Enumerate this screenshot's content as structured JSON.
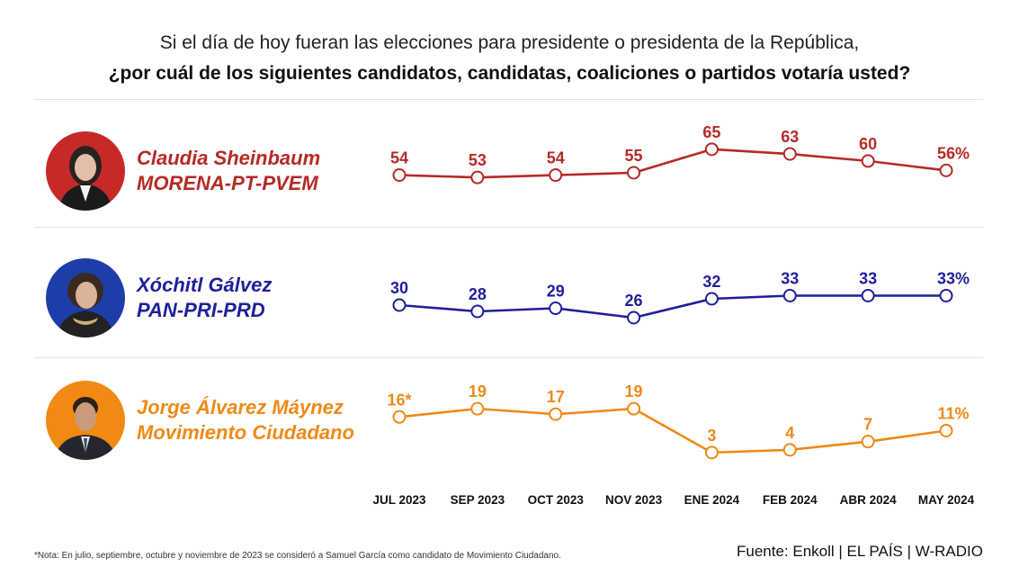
{
  "header": {
    "question_line1": "Si el día de hoy fueran las elecciones para presidente o presidenta de la República,",
    "question_line2": "¿por cuál de los siguientes candidatos, candidatas, coaliciones o partidos votaría usted?"
  },
  "candidates": [
    {
      "name": "Claudia Sheinbaum",
      "party": "MORENA-PT-PVEM",
      "color": "#b52a26",
      "avatar_bg": "#c62a28"
    },
    {
      "name": "Xóchitl Gálvez",
      "party": "PAN-PRI-PRD",
      "color": "#1f1f9c",
      "avatar_bg": "#1d3ea8"
    },
    {
      "name": "Jorge Álvarez Máynez",
      "party": "Movimiento Ciudadano",
      "color": "#ee8a17",
      "avatar_bg": "#f08a12"
    }
  ],
  "chart_data": {
    "type": "line",
    "title": "Si el día de hoy fueran las elecciones para presidente o presidenta de la República, ¿por cuál de los siguientes candidatos, candidatas, coaliciones o partidos votaría usted?",
    "categories": [
      "JUL 2023",
      "SEP 2023",
      "OCT 2023",
      "NOV 2023",
      "ENE 2024",
      "FEB 2024",
      "ABR 2024",
      "MAY 2024"
    ],
    "series": [
      {
        "name": "Claudia Sheinbaum",
        "values": [
          54,
          53,
          54,
          55,
          65,
          63,
          60,
          56
        ],
        "labels": [
          "54",
          "53",
          "54",
          "55",
          "65",
          "63",
          "60",
          "56%"
        ],
        "ylim": [
          50,
          68
        ]
      },
      {
        "name": "Xóchitl Gálvez",
        "values": [
          30,
          28,
          29,
          26,
          32,
          33,
          33,
          33
        ],
        "labels": [
          "30",
          "28",
          "29",
          "26",
          "32",
          "33",
          "33",
          "33%"
        ],
        "ylim": [
          24,
          36
        ]
      },
      {
        "name": "Jorge Álvarez Máynez",
        "values": [
          16,
          19,
          17,
          19,
          3,
          4,
          7,
          11
        ],
        "labels": [
          "16*",
          "19",
          "17",
          "19",
          "3",
          "4",
          "7",
          "11%"
        ],
        "ylim": [
          0,
          22
        ]
      }
    ],
    "xlabel": "",
    "ylabel": ""
  },
  "footer": {
    "note": "*Nota: En julio, septiembre, octubre y noviembre de 2023 se consideró a Samuel García como candidato de Movimiento Ciudadano.",
    "source": "Fuente: Enkoll | EL PAÍS | W-RADIO"
  }
}
